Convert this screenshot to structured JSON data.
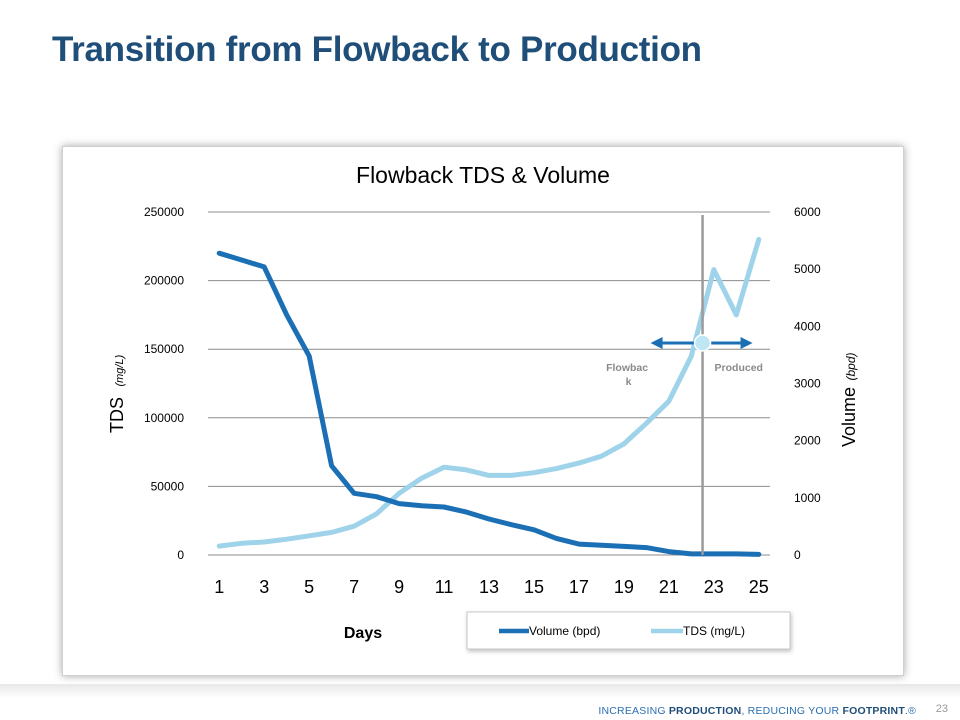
{
  "slide": {
    "title": "Transition from Flowback to Production",
    "tagline_prefix": "INCREASING ",
    "tagline_bold1": "PRODUCTION",
    "tagline_mid": ", REDUCING YOUR ",
    "tagline_bold2": "FOOTPRINT",
    "tagline_suffix": ".®",
    "page_number": "23"
  },
  "chart_data": {
    "type": "line",
    "title": "Flowback TDS & Volume",
    "xlabel": "Days",
    "ylabel_main": "TDS",
    "ylabel_unit": "(mg/L)",
    "y2label_main": "Volume",
    "y2label_unit": "(bpd)",
    "x": [
      1,
      2,
      3,
      4,
      5,
      6,
      7,
      8,
      9,
      10,
      11,
      12,
      13,
      14,
      15,
      16,
      17,
      18,
      19,
      20,
      21,
      22,
      23,
      24,
      25
    ],
    "x_tick_labels": [
      "1",
      "3",
      "5",
      "7",
      "9",
      "11",
      "13",
      "15",
      "17",
      "19",
      "21",
      "23",
      "25"
    ],
    "ylim": [
      0,
      250000
    ],
    "y_ticks": [
      "0",
      "50000",
      "100000",
      "150000",
      "200000",
      "250000"
    ],
    "y2lim": [
      0,
      6000
    ],
    "y2_ticks": [
      "0",
      "1000",
      "2000",
      "3000",
      "4000",
      "5000",
      "6000"
    ],
    "grid": true,
    "legend_position": "bottom-right",
    "series": [
      {
        "name": "Volume (bpd)",
        "axis": "right",
        "color": "#1a6fb5",
        "values": [
          5280,
          5160,
          5040,
          4200,
          3480,
          1560,
          1080,
          1020,
          900,
          860,
          840,
          750,
          630,
          530,
          440,
          290,
          190,
          170,
          150,
          130,
          60,
          20,
          20,
          20,
          10
        ]
      },
      {
        "name": "TDS (mg/L)",
        "axis": "left",
        "color": "#9fd3ea",
        "values": [
          6500,
          8500,
          9500,
          11500,
          14000,
          16500,
          21000,
          30000,
          45000,
          56000,
          64000,
          62000,
          58000,
          58000,
          60000,
          63000,
          67000,
          72000,
          81000,
          96000,
          112000,
          145000,
          208000,
          175000,
          230000
        ]
      }
    ],
    "annotations": {
      "flowback_label": "Flowbac k",
      "produced_label": "Produced",
      "transition_x": 22.5
    }
  }
}
